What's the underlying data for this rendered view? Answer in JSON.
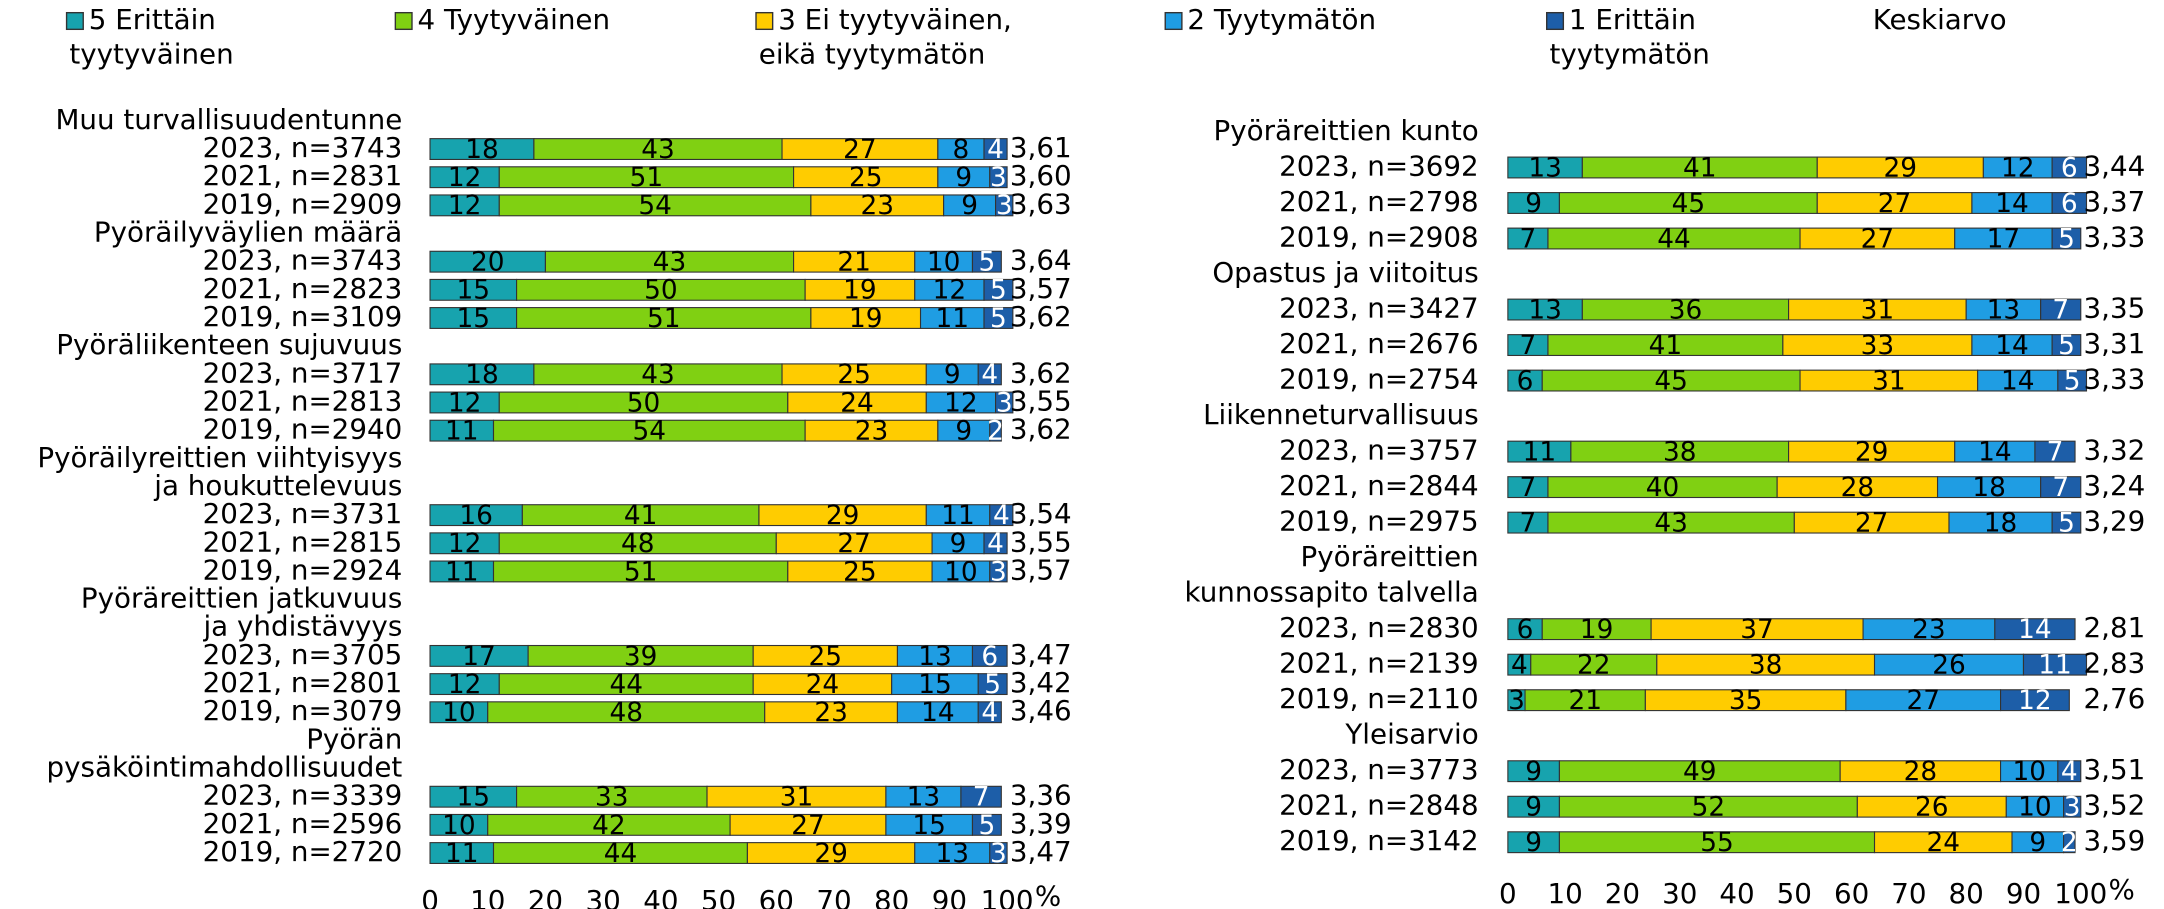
{
  "legend": {
    "items": [
      {
        "name": [
          "5 Erittäin",
          "tyytyväinen"
        ],
        "color": "#17a3ae"
      },
      {
        "name": [
          "4 Tyytyväinen"
        ],
        "color": "#80d012"
      },
      {
        "name": [
          "3 Ei tyytyväinen,",
          "eikä tyytymätön"
        ],
        "color": "#ffcc00"
      },
      {
        "name": [
          "2 Tyytymätön"
        ],
        "color": "#1f9de3"
      },
      {
        "name": [
          "1 Erittäin",
          "tyytymätön"
        ],
        "color": "#1d5ea8"
      }
    ],
    "mean_title": "Keskiarvo"
  },
  "chart_data": [
    {
      "type": "stacked_barh",
      "group_titles": [
        [
          "Muu turvallisuudentunne"
        ],
        [
          "Pyöräilyväylien määrä"
        ],
        [
          "Pyöräliikenteen sujuvuus"
        ],
        [
          "Pyöräilyreittien viihtyisyys",
          "ja houkuttelevuus"
        ],
        [
          "Pyöräreittien jatkuvuus",
          "ja yhdistävyys"
        ],
        [
          "Pyörän",
          "pysäköintimahdollisuudet"
        ]
      ],
      "categories": [
        "2023, n=3743",
        "2021, n=2831",
        "2019, n=2909",
        "2023, n=3743",
        "2021, n=2823",
        "2019, n=3109",
        "2023, n=3717",
        "2021, n=2813",
        "2019, n=2940",
        "2023, n=3731",
        "2021, n=2815",
        "2019, n=2924",
        "2023, n=3705",
        "2021, n=2801",
        "2019, n=3079",
        "2023, n=3339",
        "2021, n=2596",
        "2019, n=2720"
      ],
      "series": [
        {
          "values": [
            18,
            12,
            12,
            20,
            15,
            15,
            18,
            12,
            11,
            16,
            12,
            11,
            17,
            12,
            10,
            15,
            10,
            11
          ]
        },
        {
          "values": [
            43,
            51,
            54,
            43,
            50,
            51,
            43,
            50,
            54,
            41,
            48,
            51,
            39,
            44,
            48,
            33,
            42,
            44
          ]
        },
        {
          "values": [
            27,
            25,
            23,
            21,
            19,
            19,
            25,
            24,
            23,
            29,
            27,
            25,
            25,
            24,
            23,
            31,
            27,
            29
          ]
        },
        {
          "values": [
            8,
            9,
            9,
            10,
            12,
            11,
            9,
            12,
            9,
            11,
            9,
            10,
            13,
            15,
            14,
            13,
            15,
            13
          ]
        },
        {
          "values": [
            4,
            3,
            3,
            5,
            5,
            5,
            4,
            3,
            2,
            4,
            4,
            3,
            6,
            5,
            4,
            7,
            5,
            3
          ]
        }
      ],
      "means": {
        "values": [
          3.61,
          3.6,
          3.63,
          3.64,
          3.57,
          3.62,
          3.62,
          3.55,
          3.62,
          3.54,
          3.55,
          3.57,
          3.47,
          3.42,
          3.46,
          3.36,
          3.39,
          3.47
        ],
        "value_labels": [
          "3,61",
          "3,60",
          "3,63",
          "3,64",
          "3,57",
          "3,62",
          "3,62",
          "3,55",
          "3,62",
          "3,54",
          "3,55",
          "3,57",
          "3,47",
          "3,42",
          "3,46",
          "3,36",
          "3,39",
          "3,47"
        ]
      },
      "xlim": [
        0,
        100
      ],
      "xticks": [
        0,
        10,
        20,
        30,
        40,
        50,
        60,
        70,
        80,
        90,
        100
      ],
      "xlabel": "%"
    },
    {
      "type": "stacked_barh",
      "group_titles": [
        [
          "Pyöräreittien kunto"
        ],
        [
          "Opastus ja viitoitus"
        ],
        [
          "Liikenneturvallisuus"
        ],
        [
          "Pyöräreittien",
          "kunnossapito talvella"
        ],
        [
          "Yleisarvio"
        ]
      ],
      "categories": [
        "2023, n=3692",
        "2021, n=2798",
        "2019, n=2908",
        "2023, n=3427",
        "2021, n=2676",
        "2019, n=2754",
        "2023, n=3757",
        "2021, n=2844",
        "2019, n=2975",
        "2023, n=2830",
        "2021, n=2139",
        "2019, n=2110",
        "2023, n=3773",
        "2021, n=2848",
        "2019, n=3142"
      ],
      "series": [
        {
          "values": [
            13,
            9,
            7,
            13,
            7,
            6,
            11,
            7,
            7,
            6,
            4,
            3,
            9,
            9,
            9
          ]
        },
        {
          "values": [
            41,
            45,
            44,
            36,
            41,
            45,
            38,
            40,
            43,
            19,
            22,
            21,
            49,
            52,
            55
          ]
        },
        {
          "values": [
            29,
            27,
            27,
            31,
            33,
            31,
            29,
            28,
            27,
            37,
            38,
            35,
            28,
            26,
            24
          ]
        },
        {
          "values": [
            12,
            14,
            17,
            13,
            14,
            14,
            14,
            18,
            18,
            23,
            26,
            27,
            10,
            10,
            9
          ]
        },
        {
          "values": [
            6,
            6,
            5,
            7,
            5,
            5,
            7,
            7,
            5,
            14,
            11,
            12,
            4,
            3,
            2
          ]
        }
      ],
      "means": {
        "values": [
          3.44,
          3.37,
          3.33,
          3.35,
          3.31,
          3.33,
          3.32,
          3.24,
          3.29,
          2.81,
          2.83,
          2.76,
          3.51,
          3.52,
          3.59
        ],
        "value_labels": [
          "3,44",
          "3,37",
          "3,33",
          "3,35",
          "3,31",
          "3,33",
          "3,32",
          "3,24",
          "3,29",
          "2,81",
          "2,83",
          "2,76",
          "3,51",
          "3,52",
          "3,59"
        ]
      },
      "xlim": [
        0,
        100
      ],
      "xticks": [
        0,
        10,
        20,
        30,
        40,
        50,
        60,
        70,
        80,
        90,
        100
      ],
      "xlabel": "%"
    }
  ]
}
